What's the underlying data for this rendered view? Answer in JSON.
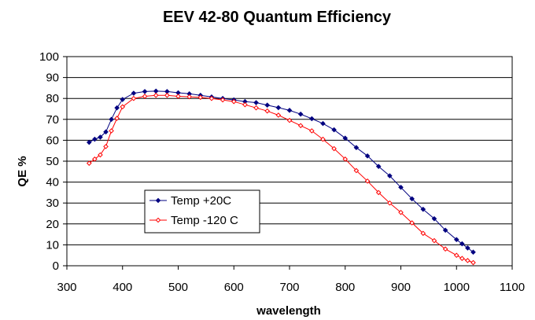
{
  "chart_data": {
    "type": "line",
    "title": "EEV 42-80 Quantum Efficiency",
    "xlabel": "wavelength",
    "ylabel": "QE %",
    "xlim": [
      300,
      1100
    ],
    "ylim": [
      0,
      100
    ],
    "xticks": [
      "300",
      "400",
      "500",
      "600",
      "700",
      "800",
      "900",
      "1000",
      "1100"
    ],
    "yticks": [
      "0",
      "10",
      "20",
      "30",
      "40",
      "50",
      "60",
      "70",
      "80",
      "90",
      "100"
    ],
    "grid": "horizontal",
    "legend": "inside-left",
    "series": [
      {
        "name": "Temp +20C",
        "color": "#000080",
        "marker": "diamond",
        "x": [
          340,
          350,
          360,
          370,
          380,
          390,
          400,
          420,
          440,
          460,
          480,
          500,
          520,
          540,
          560,
          580,
          600,
          620,
          640,
          660,
          680,
          700,
          720,
          740,
          760,
          780,
          800,
          820,
          840,
          860,
          880,
          900,
          920,
          940,
          960,
          980,
          1000,
          1010,
          1020,
          1030
        ],
        "y": [
          59,
          60.5,
          61.5,
          64,
          70,
          75.5,
          79.5,
          82.5,
          83.3,
          83.5,
          83.3,
          82.7,
          82.2,
          81.5,
          80.7,
          80,
          79.3,
          78.5,
          78,
          76.8,
          75.6,
          74.3,
          72.5,
          70.3,
          68,
          65,
          61,
          56.5,
          52.5,
          47.5,
          43,
          37.5,
          32,
          27,
          22.5,
          17,
          12.5,
          10.5,
          8.5,
          6.5
        ]
      },
      {
        "name": "Temp -120 C",
        "color": "#ff0000",
        "marker": "diamond",
        "x": [
          340,
          350,
          360,
          370,
          380,
          390,
          400,
          420,
          440,
          460,
          480,
          500,
          520,
          540,
          560,
          580,
          600,
          620,
          640,
          660,
          680,
          700,
          720,
          740,
          760,
          780,
          800,
          820,
          840,
          860,
          880,
          900,
          920,
          940,
          960,
          980,
          1000,
          1010,
          1020,
          1030
        ],
        "y": [
          49,
          51,
          53,
          57,
          64.5,
          70.5,
          76,
          80,
          81,
          81.5,
          81.5,
          81,
          80.8,
          80.5,
          80,
          79.3,
          78.5,
          77,
          75.5,
          74,
          72,
          69.5,
          67,
          64.5,
          60.5,
          56,
          51,
          45.5,
          40.5,
          35,
          30,
          25.5,
          20.5,
          15.5,
          12,
          8,
          5,
          3.5,
          2.5,
          1.5
        ]
      }
    ]
  }
}
